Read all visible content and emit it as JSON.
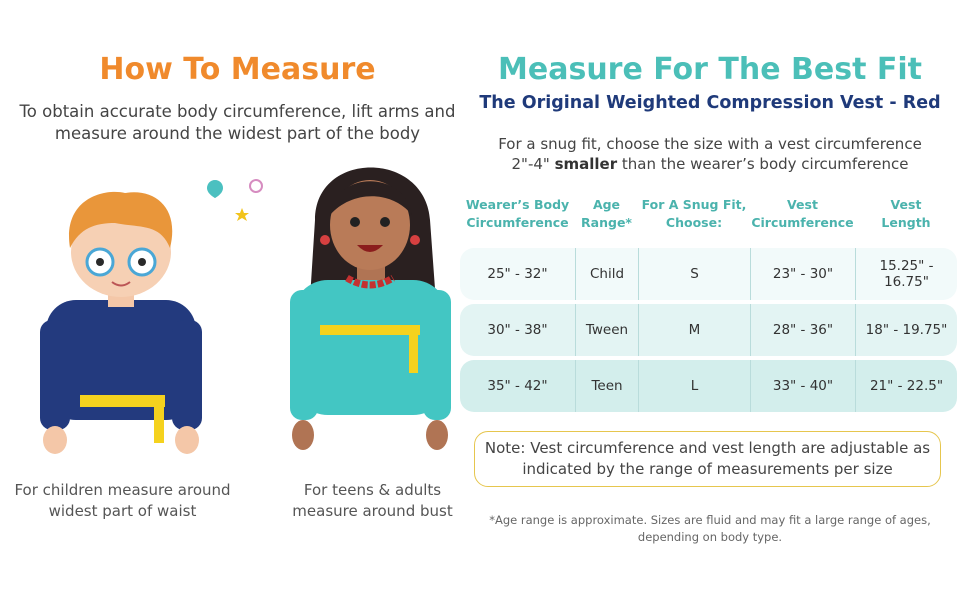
{
  "left": {
    "title": "How To Measure",
    "subtitle_lines": [
      "To obtain accurate body circumference, lift arms and",
      "measure around the widest part of the body"
    ],
    "child_caption": [
      "For children measure around",
      "widest part of waist"
    ],
    "adult_caption": [
      "For teens & adults",
      "measure around bust"
    ]
  },
  "right": {
    "title": "Measure For The Best Fit",
    "subtitle": "The Original Weighted Compression Vest - Red",
    "intro_line1": "For a snug fit, choose the size with a vest circumference",
    "intro_line2_pre": "2\"-4\" ",
    "intro_line2_bold": "smaller",
    "intro_line2_post": " than the wearer’s body circumference",
    "table": {
      "headers": [
        [
          "Wearer’s Body",
          "Circumference"
        ],
        [
          "Age",
          "Range*"
        ],
        [
          "For A Snug Fit,",
          "Choose:"
        ],
        [
          "Vest",
          "Circumference"
        ],
        [
          "Vest",
          "Length"
        ]
      ],
      "rows": [
        [
          "25\" - 32\"",
          "Child",
          "S",
          "23\" - 30\"",
          "15.25\" - 16.75\""
        ],
        [
          "30\" - 38\"",
          "Tween",
          "M",
          "28\" - 36\"",
          "18\" - 19.75\""
        ],
        [
          "35\" - 42\"",
          "Teen",
          "L",
          "33\" - 40\"",
          "21\" - 22.5\""
        ]
      ]
    },
    "note": [
      "Note: Vest circumference and vest length are adjustable as",
      "indicated by the range of measurements per size"
    ],
    "footnote": [
      "*Age range is approximate. Sizes are fluid and may fit a large range of ages,",
      "depending on body type."
    ]
  },
  "colors": {
    "orange": "#f08a2c",
    "teal": "#4bbfb8",
    "navy": "#1f3a7a",
    "note_border": "#e6c64e"
  }
}
